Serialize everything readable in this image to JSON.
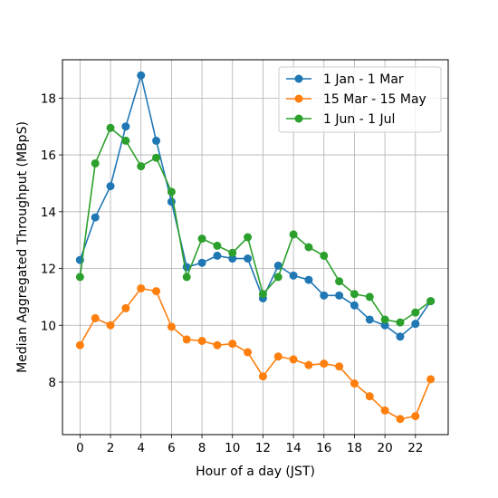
{
  "chart_data": {
    "type": "line",
    "title": "",
    "xlabel": "Hour of a day (JST)",
    "ylabel": "Median Aggregated Throughput (MBpS)",
    "x": [
      0,
      1,
      2,
      3,
      4,
      5,
      6,
      7,
      8,
      9,
      10,
      11,
      12,
      13,
      14,
      15,
      16,
      17,
      18,
      19,
      20,
      21,
      22,
      23
    ],
    "xticks": [
      0,
      2,
      4,
      6,
      8,
      10,
      12,
      14,
      16,
      18,
      20,
      22
    ],
    "xlim": [
      -1.15,
      24.15
    ],
    "yticks": [
      8,
      10,
      12,
      14,
      16,
      18
    ],
    "ylim": [
      6.15,
      19.35
    ],
    "grid": true,
    "legend_position": "top-right",
    "series": [
      {
        "name": "1 Jan - 1 Mar",
        "color": "#1f77b4",
        "values": [
          12.3,
          13.8,
          14.9,
          17.0,
          18.8,
          16.5,
          14.35,
          12.05,
          12.2,
          12.45,
          12.35,
          12.35,
          10.95,
          12.1,
          11.75,
          11.6,
          11.05,
          11.05,
          10.7,
          10.2,
          10.0,
          9.6,
          10.05,
          10.85
        ]
      },
      {
        "name": "15 Mar - 15 May",
        "color": "#ff7f0e",
        "values": [
          9.3,
          10.25,
          10.0,
          10.6,
          11.3,
          11.2,
          9.95,
          9.5,
          9.45,
          9.3,
          9.35,
          9.05,
          8.2,
          8.9,
          8.8,
          8.6,
          8.65,
          8.55,
          7.95,
          7.5,
          7.0,
          6.7,
          6.8,
          8.1
        ]
      },
      {
        "name": "1 Jun - 1 Jul",
        "color": "#2ca02c",
        "values": [
          11.7,
          15.7,
          16.95,
          16.5,
          15.6,
          15.9,
          14.7,
          11.7,
          13.05,
          12.8,
          12.55,
          13.1,
          11.1,
          11.7,
          13.2,
          12.75,
          12.45,
          11.55,
          11.1,
          11.0,
          10.2,
          10.1,
          10.45,
          10.85
        ]
      }
    ]
  }
}
